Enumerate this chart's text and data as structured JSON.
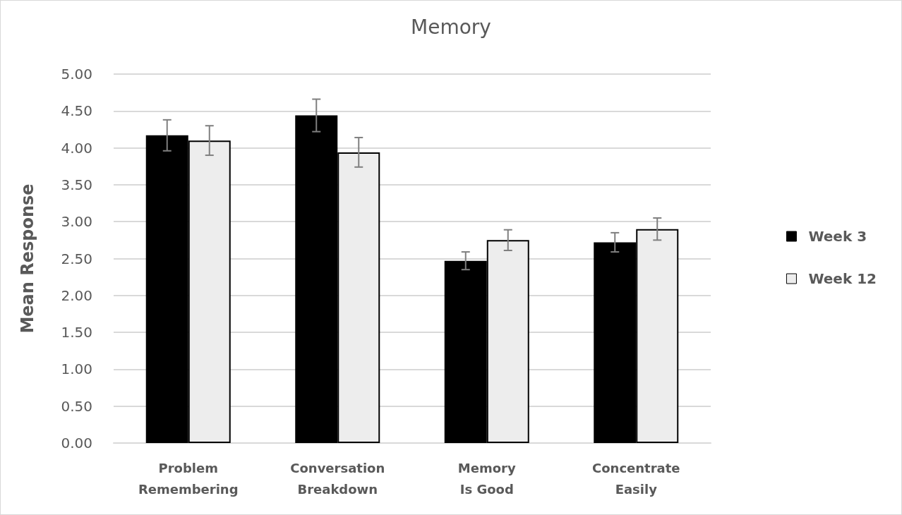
{
  "chart_data": {
    "type": "bar",
    "title": "Memory",
    "ylabel": "Mean Response",
    "categories": [
      "Problem\nRemembering",
      "Conversation\nBreakdown",
      "Memory\nIs Good",
      "Concentrate\nEasily"
    ],
    "series": [
      {
        "name": "Week 3",
        "color": "#000000",
        "values": [
          4.17,
          4.44,
          2.47,
          2.72
        ],
        "errors": [
          0.21,
          0.22,
          0.12,
          0.13
        ]
      },
      {
        "name": "Week 12",
        "color": "#ededed",
        "values": [
          4.1,
          3.94,
          2.75,
          2.9
        ],
        "errors": [
          0.2,
          0.2,
          0.14,
          0.15
        ]
      }
    ],
    "ylim": [
      0,
      5
    ],
    "yticks": [
      {
        "value": 0,
        "label": "0.00"
      },
      {
        "value": 0.5,
        "label": "0.50"
      },
      {
        "value": 1,
        "label": "1.00"
      },
      {
        "value": 1.5,
        "label": "1.50"
      },
      {
        "value": 2,
        "label": "2.00"
      },
      {
        "value": 2.5,
        "label": "2.50"
      },
      {
        "value": 3,
        "label": "3.00"
      },
      {
        "value": 3.5,
        "label": "3.50"
      },
      {
        "value": 4,
        "label": "4.00"
      },
      {
        "value": 4.5,
        "label": "4.50"
      },
      {
        "value": 5,
        "label": "5.00"
      }
    ],
    "grid": "y",
    "legend": "right"
  }
}
